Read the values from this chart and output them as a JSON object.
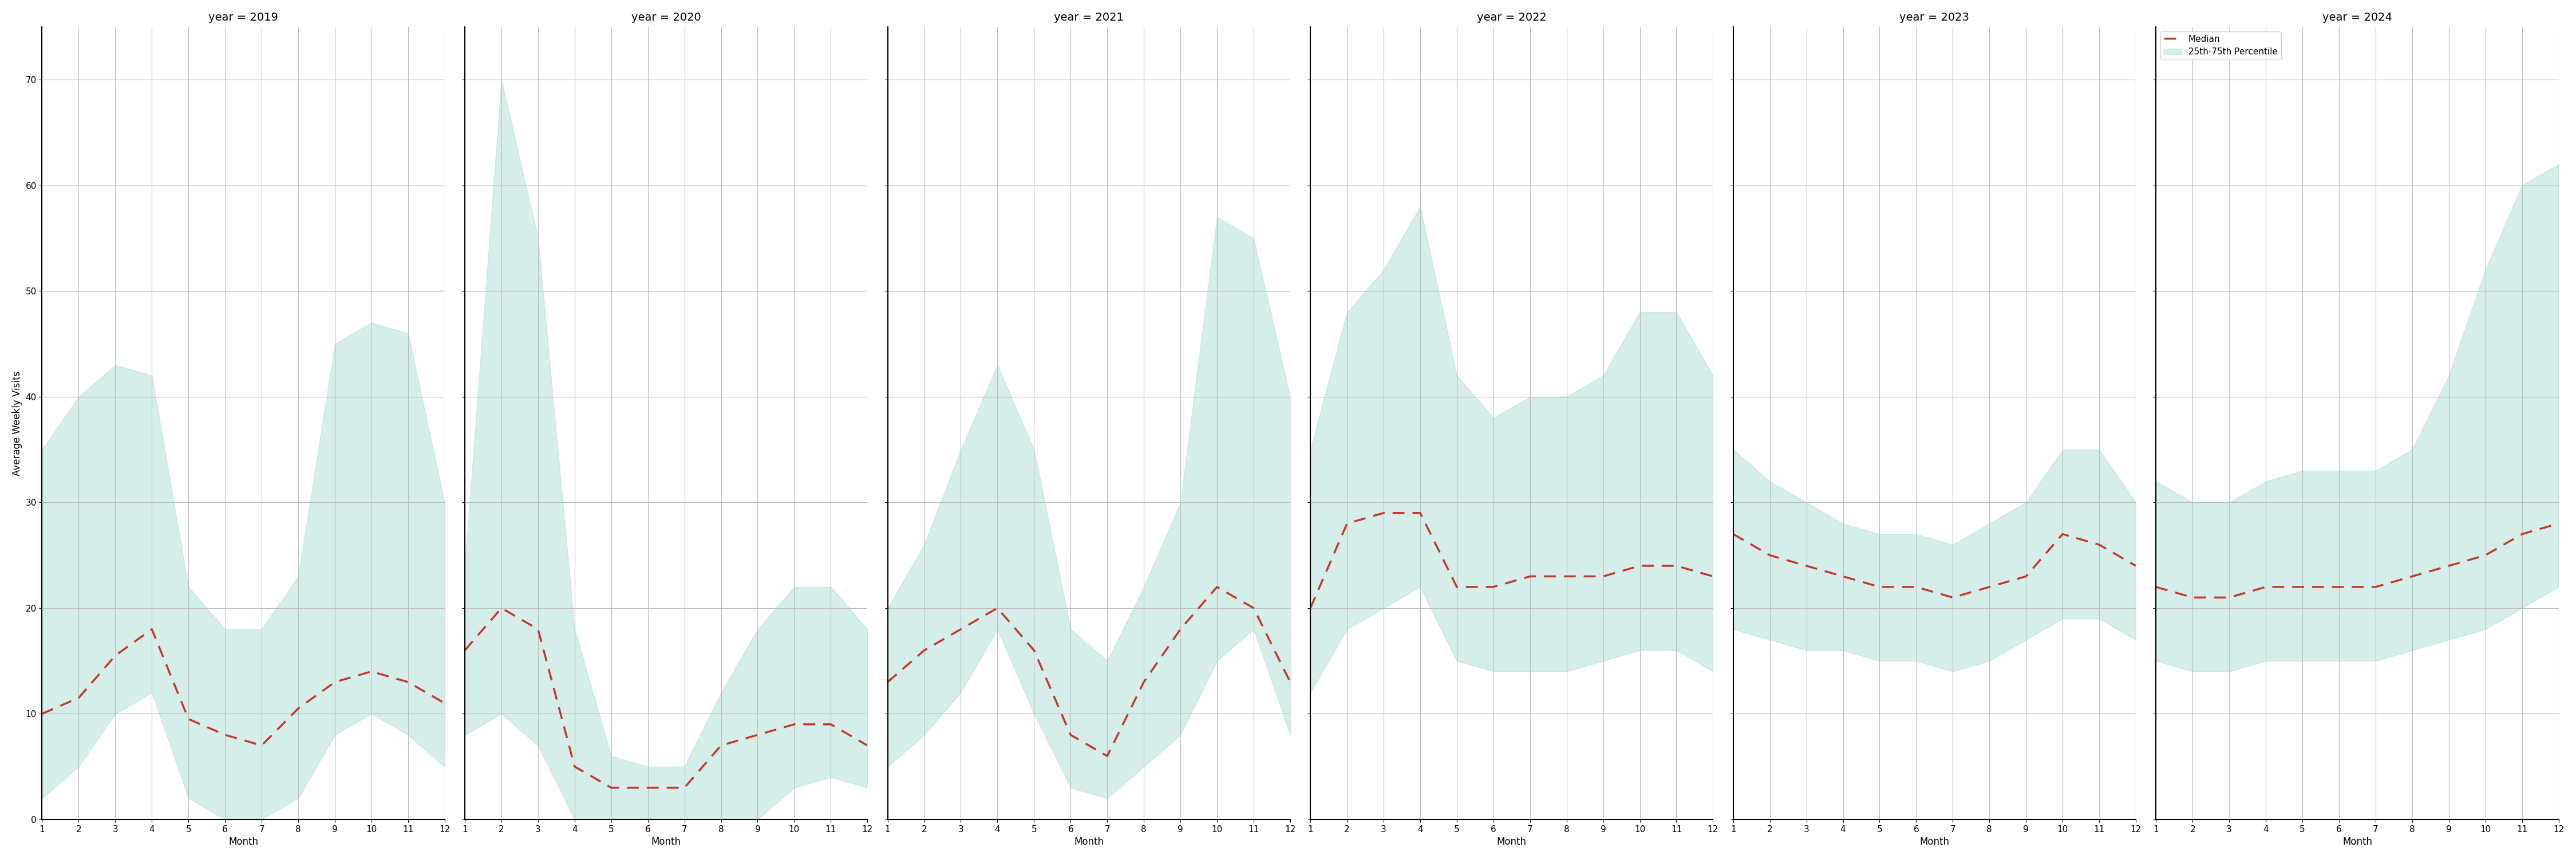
{
  "years": [
    2019,
    2020,
    2021,
    2022,
    2023,
    2024
  ],
  "months": [
    1,
    2,
    3,
    4,
    5,
    6,
    7,
    8,
    9,
    10,
    11,
    12
  ],
  "median": {
    "2019": [
      10.0,
      11.5,
      15.5,
      18.0,
      9.5,
      8.0,
      7.0,
      10.5,
      13.0,
      14.0,
      13.0,
      11.0
    ],
    "2020": [
      16.0,
      20.0,
      18.0,
      5.0,
      3.0,
      3.0,
      3.0,
      7.0,
      8.0,
      9.0,
      9.0,
      7.0
    ],
    "2021": [
      13.0,
      16.0,
      18.0,
      20.0,
      16.0,
      8.0,
      6.0,
      13.0,
      18.0,
      22.0,
      20.0,
      13.0
    ],
    "2022": [
      20.0,
      28.0,
      29.0,
      29.0,
      22.0,
      22.0,
      23.0,
      23.0,
      23.0,
      24.0,
      24.0,
      23.0
    ],
    "2023": [
      27.0,
      25.0,
      24.0,
      23.0,
      22.0,
      22.0,
      21.0,
      22.0,
      23.0,
      27.0,
      26.0,
      24.0
    ],
    "2024": [
      22.0,
      21.0,
      21.0,
      22.0,
      22.0,
      22.0,
      22.0,
      23.0,
      24.0,
      25.0,
      27.0,
      28.0
    ]
  },
  "q25": {
    "2019": [
      2.0,
      5.0,
      10.0,
      12.0,
      2.0,
      0.0,
      0.0,
      2.0,
      8.0,
      10.0,
      8.0,
      5.0
    ],
    "2020": [
      8.0,
      10.0,
      7.0,
      0.0,
      0.0,
      0.0,
      0.0,
      0.0,
      0.0,
      3.0,
      4.0,
      3.0
    ],
    "2021": [
      5.0,
      8.0,
      12.0,
      18.0,
      10.0,
      3.0,
      2.0,
      5.0,
      8.0,
      15.0,
      18.0,
      8.0
    ],
    "2022": [
      12.0,
      18.0,
      20.0,
      22.0,
      15.0,
      14.0,
      14.0,
      14.0,
      15.0,
      16.0,
      16.0,
      14.0
    ],
    "2023": [
      18.0,
      17.0,
      16.0,
      16.0,
      15.0,
      15.0,
      14.0,
      15.0,
      17.0,
      19.0,
      19.0,
      17.0
    ],
    "2024": [
      15.0,
      14.0,
      14.0,
      15.0,
      15.0,
      15.0,
      15.0,
      16.0,
      17.0,
      18.0,
      20.0,
      22.0
    ]
  },
  "q75": {
    "2019": [
      35.0,
      40.0,
      43.0,
      42.0,
      22.0,
      18.0,
      18.0,
      23.0,
      45.0,
      47.0,
      46.0,
      30.0
    ],
    "2020": [
      24.0,
      70.0,
      55.0,
      18.0,
      6.0,
      5.0,
      5.0,
      12.0,
      18.0,
      22.0,
      22.0,
      18.0
    ],
    "2021": [
      20.0,
      26.0,
      35.0,
      43.0,
      35.0,
      18.0,
      15.0,
      22.0,
      30.0,
      57.0,
      55.0,
      40.0
    ],
    "2022": [
      35.0,
      48.0,
      52.0,
      58.0,
      42.0,
      38.0,
      40.0,
      40.0,
      42.0,
      48.0,
      48.0,
      42.0
    ],
    "2023": [
      35.0,
      32.0,
      30.0,
      28.0,
      27.0,
      27.0,
      26.0,
      28.0,
      30.0,
      35.0,
      35.0,
      30.0
    ],
    "2024": [
      32.0,
      30.0,
      30.0,
      32.0,
      33.0,
      33.0,
      33.0,
      35.0,
      42.0,
      52.0,
      60.0,
      62.0
    ]
  },
  "fill_color": "#99d6cc",
  "fill_alpha": 0.4,
  "line_color": "#c0392b",
  "line_style": "--",
  "line_width": 2.5,
  "ylabel": "Average Weekly Visits",
  "xlabel": "Month",
  "ylim": [
    0,
    75
  ],
  "yticks": [
    0,
    10,
    20,
    30,
    40,
    50,
    60,
    70
  ],
  "xticks": [
    1,
    2,
    3,
    4,
    5,
    6,
    7,
    8,
    9,
    10,
    11,
    12
  ],
  "legend_median": "Median",
  "legend_band": "25th-75th Percentile",
  "background_color": "#ffffff",
  "grid_color": "#bbbbbb",
  "title_fontsize": 14,
  "label_fontsize": 12,
  "tick_fontsize": 11
}
